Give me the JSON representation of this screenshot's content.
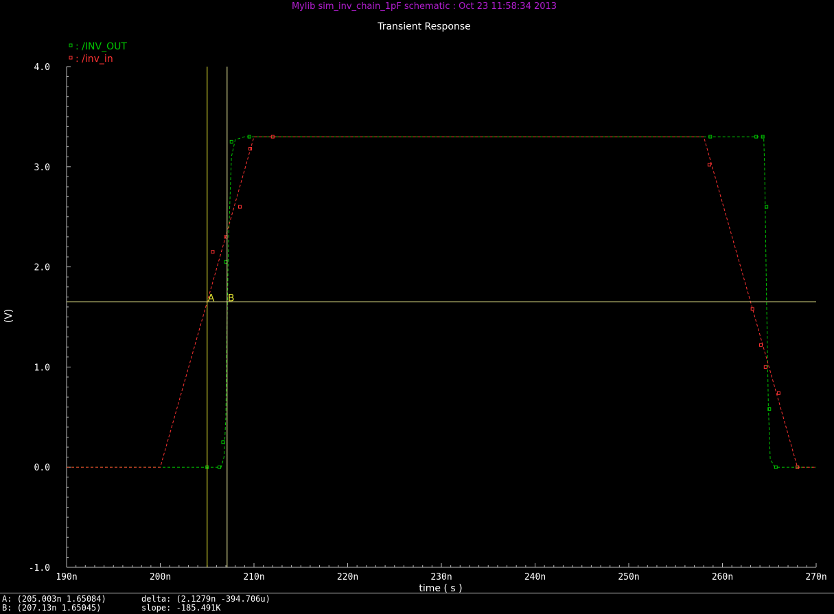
{
  "window": {
    "header": "Mylib sim_inv_chain_1pF schematic : Oct 23 11:58:34 2013"
  },
  "chart_data": {
    "type": "line",
    "title": "Transient Response",
    "xlabel": "time ( s )",
    "ylabel": "(V)",
    "xlim": [
      190,
      270
    ],
    "ylim": [
      -1.0,
      4.0
    ],
    "x_unit_suffix": "n",
    "xticks": [
      "190n",
      "200n",
      "210n",
      "220n",
      "230n",
      "240n",
      "250n",
      "260n",
      "270n"
    ],
    "yticks": [
      "-1.0",
      "0.0",
      "1.0",
      "2.0",
      "3.0",
      "4.0"
    ],
    "xtick_values": [
      190,
      200,
      210,
      220,
      230,
      240,
      250,
      260,
      270
    ],
    "ytick_values": [
      -1.0,
      0.0,
      1.0,
      2.0,
      3.0,
      4.0
    ],
    "legend_position": "top-left",
    "series": [
      {
        "name": "/INV_OUT",
        "color": "#00c800",
        "x": [
          190,
          205,
          206.5,
          206.8,
          207.0,
          207.1,
          207.3,
          207.6,
          208.0,
          209.0,
          212.0,
          258.7,
          263.5,
          264.0,
          264.4,
          264.5,
          264.7,
          264.9,
          265.1,
          265.6,
          266.5,
          268.0,
          270.0
        ],
        "y": [
          0.0,
          0.0,
          0.0,
          0.1,
          0.5,
          1.3,
          2.3,
          3.1,
          3.27,
          3.3,
          3.3,
          3.3,
          3.3,
          3.3,
          3.3,
          3.0,
          1.7,
          0.6,
          0.08,
          0.0,
          0.0,
          0.0,
          0.0
        ],
        "markers_x": [
          205,
          206.3,
          206.7,
          207.0,
          207.6,
          209.5,
          258.7,
          263.6,
          264.3,
          264.7,
          265.0,
          265.7,
          268.0
        ],
        "markers_y": [
          0.0,
          0.0,
          0.25,
          2.05,
          3.25,
          3.3,
          3.3,
          3.3,
          3.3,
          2.6,
          0.58,
          0.0,
          0.0
        ]
      },
      {
        "name": "/inv_in",
        "color": "#ff3333",
        "x": [
          190,
          200,
          210,
          258,
          268,
          270
        ],
        "y": [
          0.0,
          0.0,
          3.3,
          3.3,
          0.0,
          0.0
        ],
        "markers_x": [
          205.6,
          207.0,
          208.5,
          209.6,
          212.0,
          258.6,
          263.2,
          264.1,
          264.6,
          266.0,
          268.0
        ],
        "markers_y": [
          2.15,
          2.3,
          2.6,
          3.18,
          3.3,
          3.02,
          1.58,
          1.22,
          1.0,
          0.74,
          0.0
        ]
      }
    ],
    "cursors": {
      "vertical": [
        {
          "label": "A",
          "x": 205.003
        },
        {
          "label": "B",
          "x": 207.13
        }
      ],
      "horizontal_y": 1.65
    }
  },
  "status": {
    "a_readout": "A: (205.003n 1.65084)",
    "b_readout": "B: (207.13n 1.65045)",
    "delta_readout": "delta: (2.1279n -394.706u)",
    "slope_readout": "slope: -185.491K"
  }
}
